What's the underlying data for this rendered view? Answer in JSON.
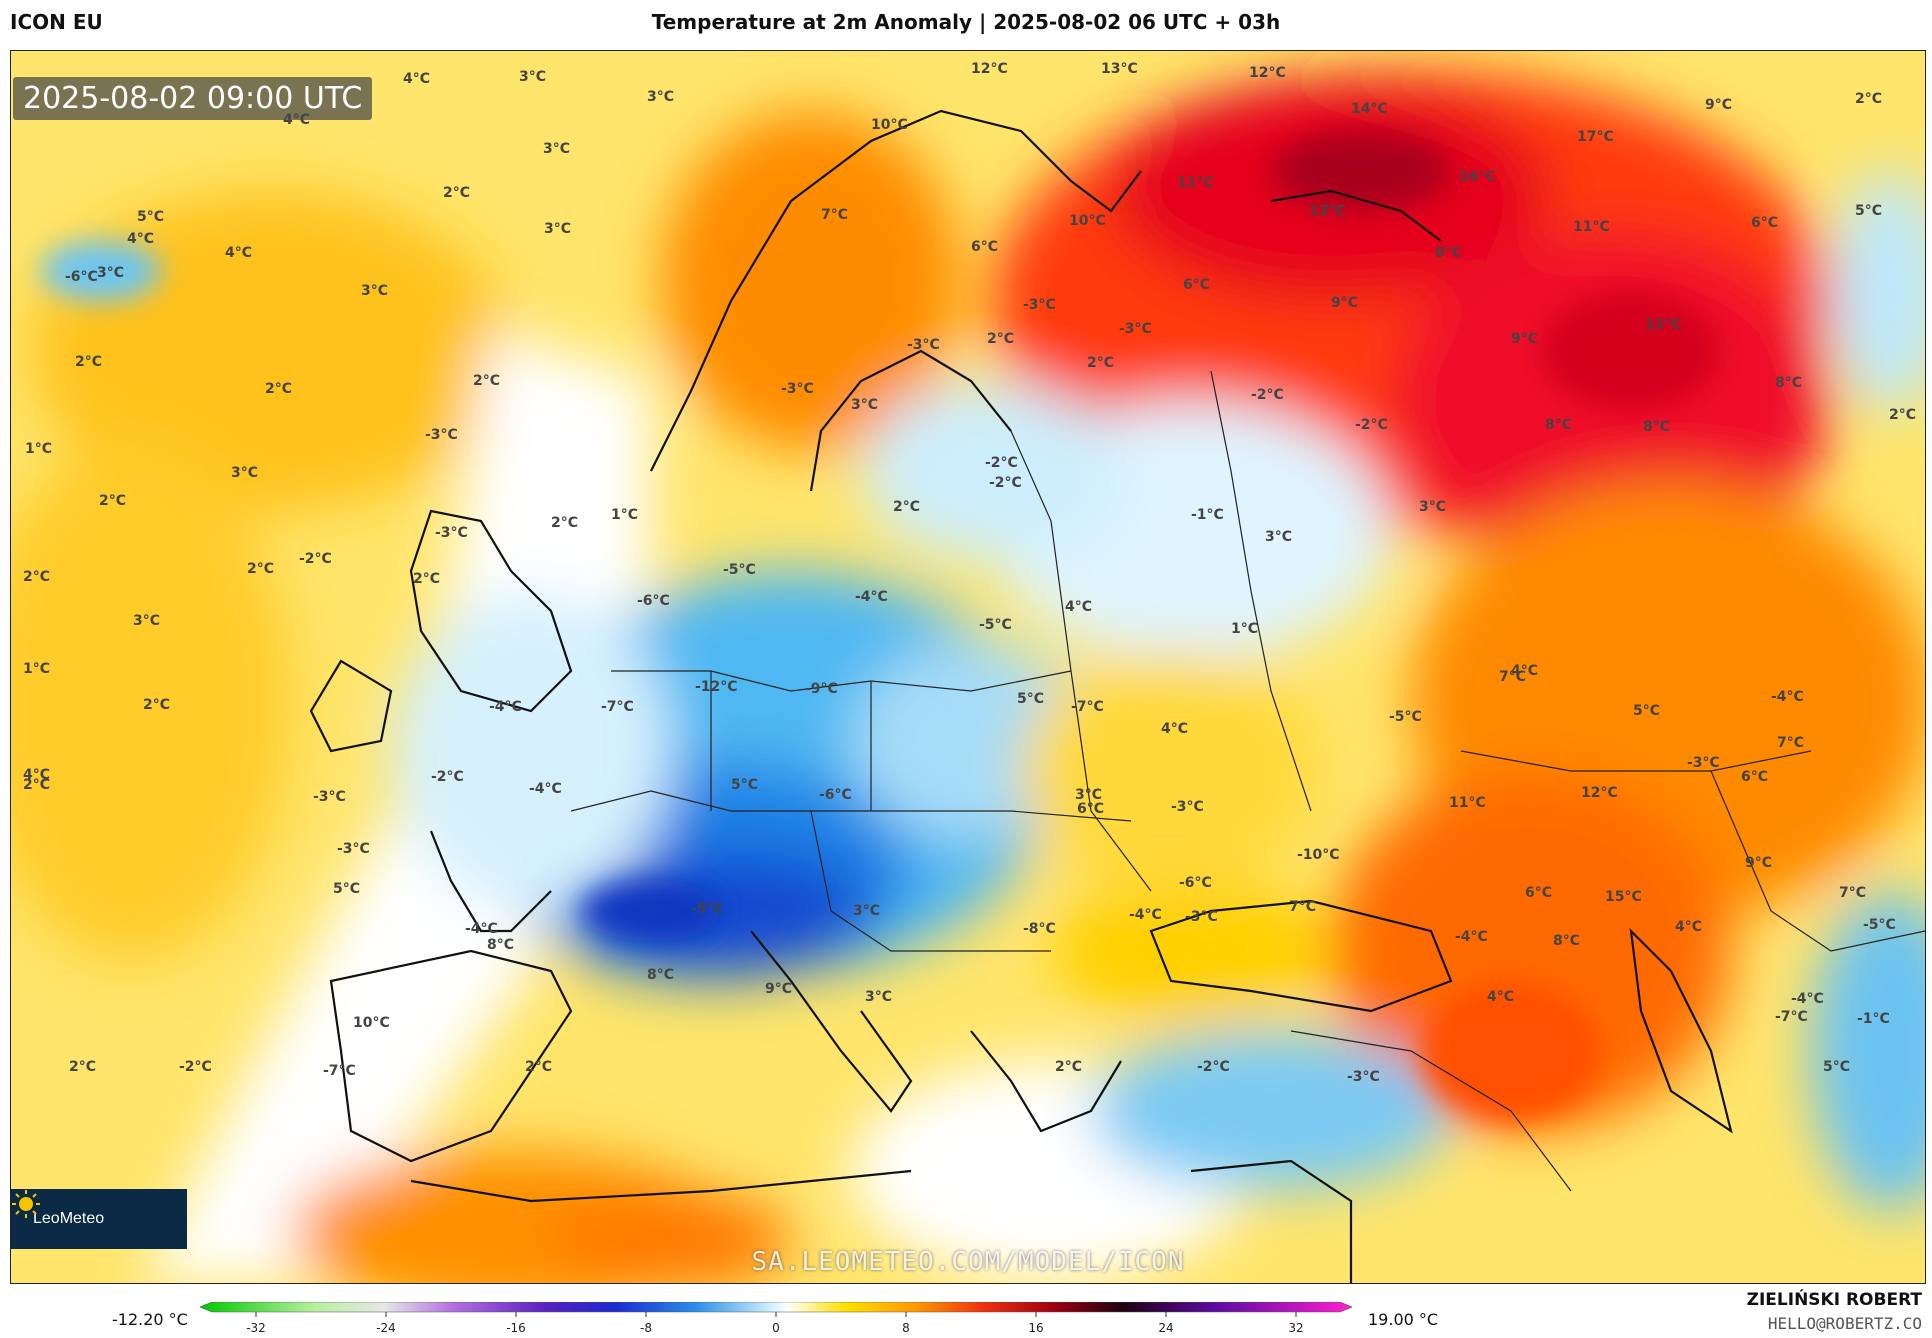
{
  "header": {
    "model": "ICON EU",
    "title": "Temperature at 2m Anomaly | 2025-08-02 06 UTC + 03h"
  },
  "map": {
    "timestamp": "2025-08-02 09:00 UTC",
    "logo_text": "LeoMeteo",
    "watermark": "SA.LEOMETEO.COM/MODEL/ICON",
    "labels": [
      "4°C",
      "3°C",
      "3°C",
      "4°C",
      "3°C",
      "2°C",
      "3°C",
      "4°C",
      "4°C",
      "3°C",
      "5°C",
      "-6°C",
      "3°C",
      "2°C",
      "2°C",
      "2°C",
      "1°C",
      "3°C",
      "2°C",
      "2°C",
      "1°C",
      "2°C",
      "2°C",
      "1°C",
      "3°C",
      "4°C",
      "2°C",
      "2°C",
      "12°C",
      "13°C",
      "12°C",
      "14°C",
      "10°C",
      "2°C",
      "9°C",
      "7°C",
      "6°C",
      "11°C",
      "10°C",
      "17°C",
      "16°C",
      "13°C",
      "11°C",
      "8°C",
      "9°C",
      "6°C",
      "6°C",
      "5°C",
      "-3°C",
      "-3°C",
      "-3°C",
      "2°C",
      "-3°C",
      "3°C",
      "2°C",
      "-2°C",
      "-2°C",
      "11°C",
      "9°C",
      "8°C",
      "8°C",
      "8°C",
      "2°C",
      "-3°C",
      "-3°C",
      "-2°C",
      "2°C",
      "-2°C",
      "-2°C",
      "-1°C",
      "3°C",
      "3°C",
      "2°C",
      "-5°C",
      "-6°C",
      "-4°C",
      "-5°C",
      "4°C",
      "1°C",
      "-4°C",
      "-7°C",
      "-12°C",
      "-9°C",
      "5°C",
      "-7°C",
      "4°C",
      "7°C",
      "5°C",
      "-5°C",
      "4°C",
      "-4°C",
      "6°C",
      "7°C",
      "-2°C",
      "-3°C",
      "-4°C",
      "5°C",
      "-6°C",
      "3°C",
      "6°C",
      "-3°C",
      "-10°C",
      "-6°C",
      "-3°C",
      "12°C",
      "11°C",
      "6°C",
      "15°C",
      "9°C",
      "7°C",
      "5°C",
      "-3°C",
      "-4°C",
      "-5°C",
      "3°C",
      "-8°C",
      "-4°C",
      "-3°C",
      "7°C",
      "-4°C",
      "4°C",
      "8°C",
      "-5°C",
      "8°C",
      "8°C",
      "10°C",
      "9°C",
      "3°C",
      "4°C",
      "-4°C",
      "2°C",
      "-2°C",
      "-2°C",
      "-3°C",
      "-7°C",
      "5°C",
      "-1°C",
      "2°C",
      "2°C",
      "-7°C"
    ]
  },
  "colorbar": {
    "min_label": "-12.20 °C",
    "max_label": "19.00 °C",
    "ticks": [
      "-32",
      "-24",
      "-16",
      "-8",
      "0",
      "8",
      "16",
      "24",
      "32"
    ]
  },
  "credits": {
    "author": "ZIELIŃSKI ROBERT",
    "email": "HELLO@ROBERTZ.CO"
  },
  "colors": {
    "warm_low": "#ffe56b",
    "warm_mid": "#ffb000",
    "warm_high": "#ff5a14",
    "hot": "#e8001e",
    "hottest": "#8a0010",
    "neutral": "#ffffff",
    "cool_low": "#c8eefa",
    "cool_mid": "#5cc0f2",
    "cool_high": "#1f7fe0",
    "cold": "#1540c8"
  }
}
